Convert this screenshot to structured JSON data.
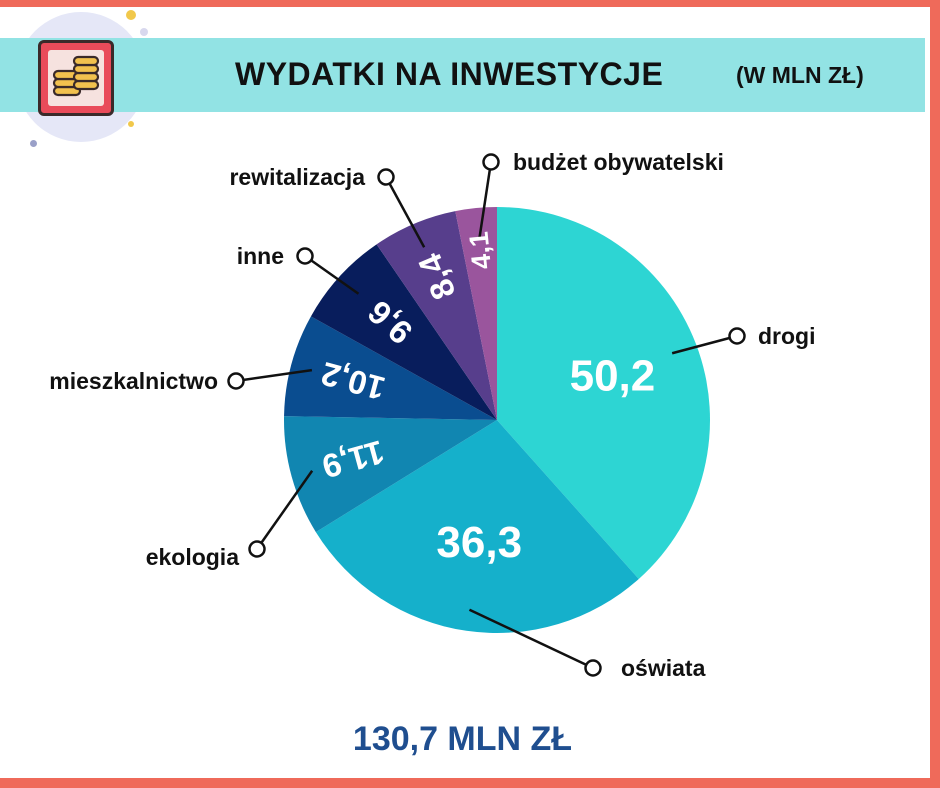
{
  "header": {
    "title": "WYDATKI NA INWESTYCJE",
    "subtitle": "(W MLN ZŁ)"
  },
  "icon": {
    "name": "coins-icon"
  },
  "total": "130,7 MLN ZŁ",
  "chart_data": {
    "type": "pie",
    "title": "WYDATKI NA INWESTYCJE",
    "subtitle": "(W MLN ZŁ)",
    "unit": "mln zł",
    "total": 130.7,
    "slices": [
      {
        "key": "drogi",
        "label": "drogi",
        "value": 50.2,
        "value_label": "50,2",
        "color": "#2dd5d3"
      },
      {
        "key": "oswiata",
        "label": "oświata",
        "value": 36.3,
        "value_label": "36,3",
        "color": "#15b0cb"
      },
      {
        "key": "ekologia",
        "label": "ekologia",
        "value": 11.9,
        "value_label": "11,9",
        "color": "#1186b1"
      },
      {
        "key": "mieszkalnictwo",
        "label": "mieszkalnictwo",
        "value": 10.2,
        "value_label": "10,2",
        "color": "#0a4d90"
      },
      {
        "key": "inne",
        "label": "inne",
        "value": 9.6,
        "value_label": "9,6",
        "color": "#081d5c"
      },
      {
        "key": "rewitalizacja",
        "label": "rewitalizacja",
        "value": 8.4,
        "value_label": "8,4",
        "color": "#573e8c"
      },
      {
        "key": "budzet-obywatelski",
        "label": "budżet obywatelski",
        "value": 4.1,
        "value_label": "4,1",
        "color": "#9a559d"
      }
    ]
  }
}
